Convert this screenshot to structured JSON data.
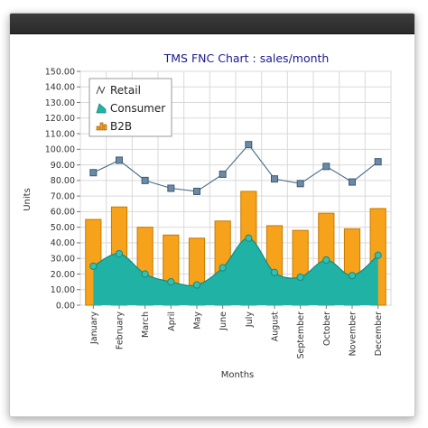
{
  "chart_data": {
    "type": "bar",
    "title": "TMS FNC Chart : sales/month",
    "xlabel": "Months",
    "ylabel": "Units",
    "ylim": [
      0,
      150
    ],
    "ytick_step": 10,
    "grid": true,
    "legend_position": "top-left",
    "categories": [
      "January",
      "February",
      "March",
      "April",
      "May",
      "June",
      "July",
      "August",
      "September",
      "October",
      "November",
      "December"
    ],
    "series": [
      {
        "name": "Retail",
        "kind": "line",
        "color": "#4a6a86",
        "values": [
          85,
          93,
          80,
          75,
          73,
          84,
          103,
          81,
          78,
          89,
          79,
          92
        ]
      },
      {
        "name": "Consumer",
        "kind": "area",
        "color": "#20b2a4",
        "values": [
          25,
          33,
          20,
          15,
          13,
          24,
          43,
          21,
          18,
          29,
          19,
          32
        ]
      },
      {
        "name": "B2B",
        "kind": "bar",
        "color": "#f7a21b",
        "values": [
          55,
          63,
          50,
          45,
          43,
          54,
          73,
          51,
          48,
          59,
          49,
          62
        ]
      }
    ]
  }
}
